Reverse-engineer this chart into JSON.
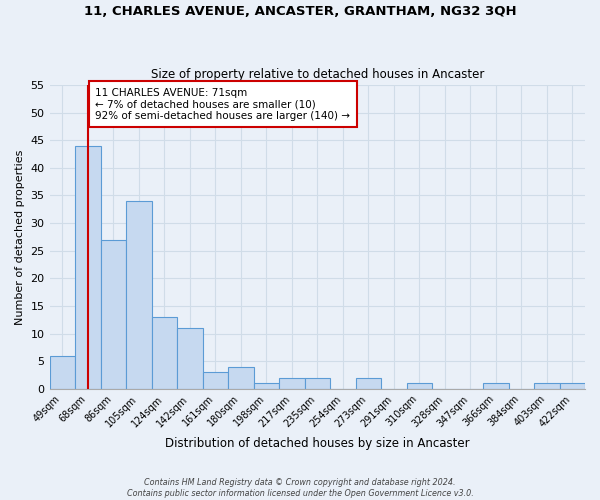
{
  "title": "11, CHARLES AVENUE, ANCASTER, GRANTHAM, NG32 3QH",
  "subtitle": "Size of property relative to detached houses in Ancaster",
  "xlabel": "Distribution of detached houses by size in Ancaster",
  "ylabel": "Number of detached properties",
  "bar_values": [
    6,
    44,
    27,
    34,
    13,
    11,
    3,
    4,
    1,
    2,
    2,
    0,
    2,
    0,
    1,
    0,
    0,
    1,
    0,
    1,
    1
  ],
  "bin_labels": [
    "49sqm",
    "68sqm",
    "86sqm",
    "105sqm",
    "124sqm",
    "142sqm",
    "161sqm",
    "180sqm",
    "198sqm",
    "217sqm",
    "235sqm",
    "254sqm",
    "273sqm",
    "291sqm",
    "310sqm",
    "328sqm",
    "347sqm",
    "366sqm",
    "384sqm",
    "403sqm",
    "422sqm"
  ],
  "bar_color": "#c6d9f0",
  "bar_edge_color": "#5b9bd5",
  "grid_color": "#d0dce8",
  "background_color": "#eaf0f8",
  "vline_x": 1,
  "vline_color": "#cc0000",
  "ylim": [
    0,
    55
  ],
  "yticks": [
    0,
    5,
    10,
    15,
    20,
    25,
    30,
    35,
    40,
    45,
    50,
    55
  ],
  "annotation_title": "11 CHARLES AVENUE: 71sqm",
  "annotation_line1": "← 7% of detached houses are smaller (10)",
  "annotation_line2": "92% of semi-detached houses are larger (140) →",
  "annotation_box_color": "#ffffff",
  "annotation_border_color": "#cc0000",
  "footer_line1": "Contains HM Land Registry data © Crown copyright and database right 2024.",
  "footer_line2": "Contains public sector information licensed under the Open Government Licence v3.0."
}
